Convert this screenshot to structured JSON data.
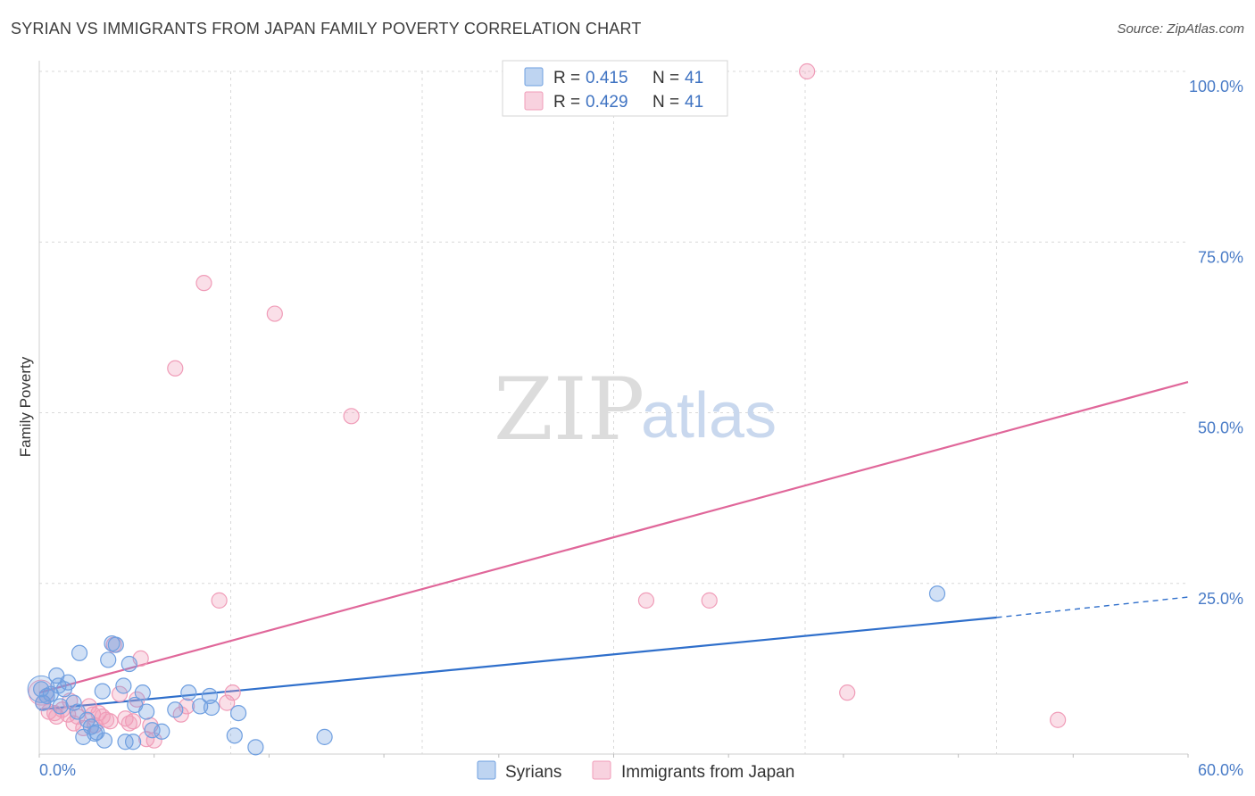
{
  "header": {
    "title": "SYRIAN VS IMMIGRANTS FROM JAPAN FAMILY POVERTY CORRELATION CHART",
    "source": "Source: ZipAtlas.com"
  },
  "colors": {
    "syrians": "#6f9fe0",
    "syrians_line": "#2f6fcb",
    "japan": "#f09cb8",
    "japan_line": "#e0679a",
    "tick_text": "#4a7cc7",
    "grid": "#d9d9d9"
  },
  "legend": {
    "rows": [
      {
        "r_label": "R =",
        "r_value": "0.415",
        "n_label": "N =",
        "n_value": "41"
      },
      {
        "r_label": "R =",
        "r_value": "0.429",
        "n_label": "N =",
        "n_value": "41"
      }
    ]
  },
  "bottom_legend": {
    "syrians": "Syrians",
    "japan": "Immigrants from Japan"
  },
  "watermark": {
    "zip": "ZIP",
    "atlas": "atlas"
  },
  "chart_data": {
    "type": "scatter",
    "title": "SYRIAN VS IMMIGRANTS FROM JAPAN FAMILY POVERTY CORRELATION CHART",
    "xlabel": "",
    "ylabel": "Family Poverty",
    "xlim": [
      0,
      60
    ],
    "ylim": [
      0,
      100
    ],
    "x_tick_labels": [
      {
        "value": 0,
        "label": "0.0%"
      },
      {
        "value": 60,
        "label": "60.0%"
      }
    ],
    "y_tick_labels": [
      {
        "value": 25,
        "label": "25.0%"
      },
      {
        "value": 50,
        "label": "50.0%"
      },
      {
        "value": 75,
        "label": "75.0%"
      },
      {
        "value": 100,
        "label": "100.0%"
      }
    ],
    "grid": true,
    "series": [
      {
        "name": "Syrians",
        "points": [
          [
            0.1,
            9.5
          ],
          [
            0.2,
            7.5
          ],
          [
            0.4,
            8.5
          ],
          [
            0.6,
            8.8
          ],
          [
            0.9,
            11.5
          ],
          [
            1.0,
            10.0
          ],
          [
            1.1,
            7.0
          ],
          [
            1.3,
            9.5
          ],
          [
            1.5,
            10.5
          ],
          [
            1.8,
            7.5
          ],
          [
            2.0,
            6.2
          ],
          [
            2.1,
            14.8
          ],
          [
            2.3,
            2.5
          ],
          [
            2.5,
            5.0
          ],
          [
            2.7,
            4.0
          ],
          [
            2.9,
            3.0
          ],
          [
            3.0,
            3.2
          ],
          [
            3.3,
            9.2
          ],
          [
            3.4,
            2.0
          ],
          [
            3.6,
            13.8
          ],
          [
            3.8,
            16.2
          ],
          [
            4.0,
            16.0
          ],
          [
            4.4,
            10.0
          ],
          [
            4.5,
            1.8
          ],
          [
            4.7,
            13.2
          ],
          [
            4.9,
            1.8
          ],
          [
            5.0,
            7.2
          ],
          [
            5.4,
            9.0
          ],
          [
            5.6,
            6.2
          ],
          [
            5.9,
            3.5
          ],
          [
            6.4,
            3.3
          ],
          [
            7.1,
            6.5
          ],
          [
            7.8,
            9.0
          ],
          [
            8.4,
            7.0
          ],
          [
            8.9,
            8.5
          ],
          [
            9.0,
            6.8
          ],
          [
            10.2,
            2.7
          ],
          [
            10.4,
            6.0
          ],
          [
            11.3,
            1.0
          ],
          [
            14.9,
            2.5
          ],
          [
            46.9,
            23.5
          ]
        ]
      },
      {
        "name": "Immigrants from Japan",
        "points": [
          [
            0.2,
            7.5
          ],
          [
            0.5,
            6.2
          ],
          [
            0.9,
            5.5
          ],
          [
            1.2,
            6.5
          ],
          [
            1.5,
            5.8
          ],
          [
            1.8,
            4.5
          ],
          [
            2.0,
            5.5
          ],
          [
            2.3,
            3.8
          ],
          [
            2.6,
            7.0
          ],
          [
            2.9,
            4.2
          ],
          [
            3.1,
            6.0
          ],
          [
            3.3,
            5.5
          ],
          [
            3.7,
            4.8
          ],
          [
            3.9,
            16.0
          ],
          [
            4.2,
            8.8
          ],
          [
            4.5,
            5.2
          ],
          [
            4.9,
            4.8
          ],
          [
            5.1,
            8.0
          ],
          [
            5.3,
            14.0
          ],
          [
            5.6,
            2.2
          ],
          [
            5.8,
            4.2
          ],
          [
            7.1,
            56.5
          ],
          [
            7.7,
            7.0
          ],
          [
            8.6,
            69.0
          ],
          [
            9.4,
            22.5
          ],
          [
            10.1,
            9.0
          ],
          [
            12.3,
            64.5
          ],
          [
            16.3,
            49.5
          ],
          [
            31.7,
            22.5
          ],
          [
            35.0,
            22.5
          ],
          [
            40.1,
            100.0
          ],
          [
            42.2,
            9.0
          ],
          [
            53.2,
            5.0
          ],
          [
            0.8,
            6.0
          ],
          [
            1.6,
            7.8
          ],
          [
            2.8,
            5.8
          ],
          [
            3.5,
            5.0
          ],
          [
            4.7,
            4.5
          ],
          [
            6.0,
            2.0
          ],
          [
            7.4,
            5.8
          ],
          [
            9.8,
            7.5
          ]
        ]
      }
    ],
    "trendlines": [
      {
        "series": "Syrians",
        "from": [
          0,
          6.5
        ],
        "to": [
          50,
          20.0
        ],
        "dashed_to": [
          60,
          23.0
        ]
      },
      {
        "series": "Immigrants from Japan",
        "from": [
          0,
          9.0
        ],
        "to": [
          60,
          54.5
        ]
      }
    ]
  }
}
